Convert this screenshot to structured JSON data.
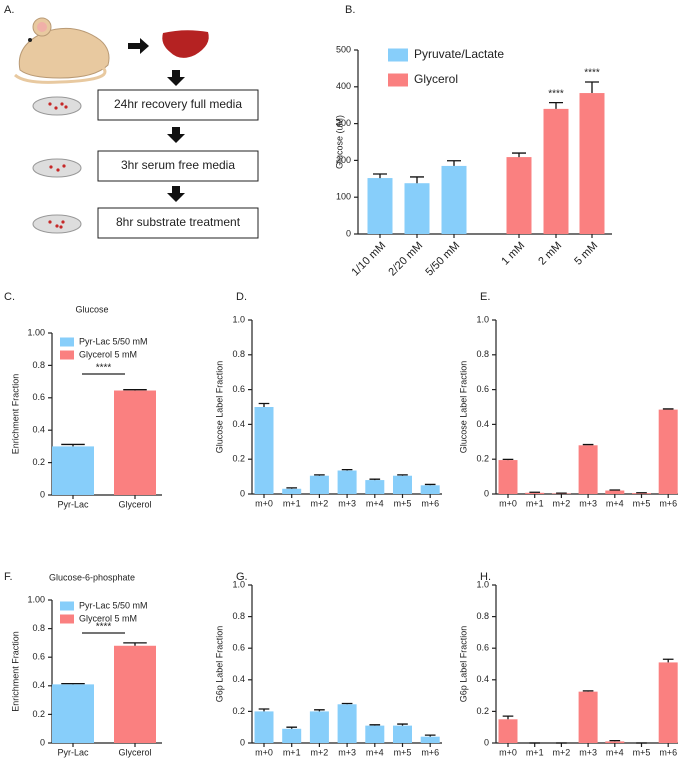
{
  "diagram": {
    "panel_label": "A.",
    "steps": [
      "24hr recovery full media",
      "3hr serum free media",
      "8hr substrate treatment"
    ]
  },
  "chart_data": [
    {
      "type": "bar",
      "panel_label": "B.",
      "y_label": "Glucose (uM)",
      "categories": [
        "1/10 mM",
        "2/20 mM",
        "5/50 mM",
        "1 mM",
        "2 mM",
        "5 mM"
      ],
      "series": [
        {
          "name": "Pyruvate/Lactate",
          "color": "#87cefa",
          "values": [
            152,
            138,
            185,
            null,
            null,
            null
          ],
          "errors": [
            11,
            17,
            14,
            null,
            null,
            null
          ]
        },
        {
          "name": "Glycerol",
          "color": "#fa8080",
          "values": [
            null,
            null,
            null,
            209,
            340,
            383
          ],
          "errors": [
            null,
            null,
            null,
            11,
            17,
            30
          ]
        }
      ],
      "annotations": [
        "****",
        "****"
      ],
      "ylim": [
        0,
        500
      ],
      "yticks": [
        0,
        100,
        200,
        300,
        400,
        500
      ],
      "legend": "top-right"
    },
    {
      "type": "bar",
      "panel_label": "C.",
      "title": "Glucose",
      "y_label": "Enrichment Fraction",
      "categories": [
        "Pyr-Lac",
        "Glycerol"
      ],
      "series": [
        {
          "name": "Pyr-Lac 5/50 mM",
          "color": "#87cefa",
          "values": [
            0.3,
            null
          ],
          "errors": [
            0.012,
            null
          ]
        },
        {
          "name": "Glycerol 5 mM",
          "color": "#fa8080",
          "values": [
            null,
            0.645
          ],
          "errors": [
            null,
            0.005
          ]
        }
      ],
      "annotations": [
        "****"
      ],
      "ylim": [
        0,
        1
      ],
      "yticks": [
        0,
        0.2,
        0.4,
        0.6,
        0.8,
        {
          "value": 1,
          "label": "1.00"
        }
      ],
      "legend": "top-left"
    },
    {
      "type": "bar",
      "panel_label": "D.",
      "y_label": "Glucose Label Fraction",
      "categories": [
        "m+0",
        "m+1",
        "m+2",
        "m+3",
        "m+4",
        "m+5",
        "m+6"
      ],
      "color": "#87cefa",
      "values": [
        0.5,
        0.03,
        0.105,
        0.135,
        0.08,
        0.105,
        0.05
      ],
      "errors": [
        0.02,
        0.005,
        0.005,
        0.005,
        0.005,
        0.005,
        0.005
      ],
      "ylim": [
        0,
        1
      ],
      "yticks": [
        0,
        0.2,
        0.4,
        0.6,
        0.8,
        {
          "value": 1,
          "label": "1.0"
        }
      ]
    },
    {
      "type": "bar",
      "panel_label": "E.",
      "y_label": "Glucose Label Fraction",
      "categories": [
        "m+0",
        "m+1",
        "m+2",
        "m+3",
        "m+4",
        "m+5",
        "m+6"
      ],
      "color": "#fa8080",
      "values": [
        0.195,
        0.007,
        0.003,
        0.28,
        0.02,
        0.005,
        0.485
      ],
      "errors": [
        0.004,
        0.003,
        0.002,
        0.004,
        0.003,
        0.002,
        0.004
      ],
      "ylim": [
        0,
        1
      ],
      "yticks": [
        0,
        0.2,
        0.4,
        0.6,
        0.8,
        {
          "value": 1,
          "label": "1.0"
        }
      ]
    },
    {
      "type": "bar",
      "panel_label": "F.",
      "title": "Glucose-6-phosphate",
      "y_label": "Enrichment Fraction",
      "categories": [
        "Pyr-Lac",
        "Glycerol"
      ],
      "series": [
        {
          "name": "Pyr-Lac 5/50 mM",
          "color": "#87cefa",
          "values": [
            0.41,
            null
          ],
          "errors": [
            0.005,
            null
          ]
        },
        {
          "name": "Glycerol 5 mM",
          "color": "#fa8080",
          "values": [
            null,
            0.68
          ],
          "errors": [
            null,
            0.02
          ]
        }
      ],
      "annotations": [
        "****"
      ],
      "ylim": [
        0,
        1
      ],
      "yticks": [
        0,
        0.2,
        0.4,
        0.6,
        0.8,
        {
          "value": 1,
          "label": "1.00"
        }
      ],
      "legend": "top-left"
    },
    {
      "type": "bar",
      "panel_label": "G.",
      "y_label": "G6p Label Fraction",
      "categories": [
        "m+0",
        "m+1",
        "m+2",
        "m+3",
        "m+4",
        "m+5",
        "m+6"
      ],
      "color": "#87cefa",
      "values": [
        0.2,
        0.09,
        0.2,
        0.245,
        0.11,
        0.11,
        0.04
      ],
      "errors": [
        0.015,
        0.01,
        0.01,
        0.005,
        0.005,
        0.01,
        0.01
      ],
      "ylim": [
        0,
        1
      ],
      "yticks": [
        0,
        0.2,
        0.4,
        0.6,
        0.8,
        {
          "value": 1,
          "label": "1.0"
        }
      ]
    },
    {
      "type": "bar",
      "panel_label": "H.",
      "y_label": "G6p Label Fraction",
      "categories": [
        "m+0",
        "m+1",
        "m+2",
        "m+3",
        "m+4",
        "m+5",
        "m+6"
      ],
      "color": "#fa8080",
      "values": [
        0.15,
        0,
        0,
        0.325,
        0.01,
        0,
        0.51
      ],
      "errors": [
        0.02,
        0,
        0,
        0.005,
        0.005,
        0,
        0.02
      ],
      "ylim": [
        0,
        1
      ],
      "yticks": [
        0,
        0.2,
        0.4,
        0.6,
        0.8,
        {
          "value": 1,
          "label": "1.0"
        }
      ]
    }
  ]
}
